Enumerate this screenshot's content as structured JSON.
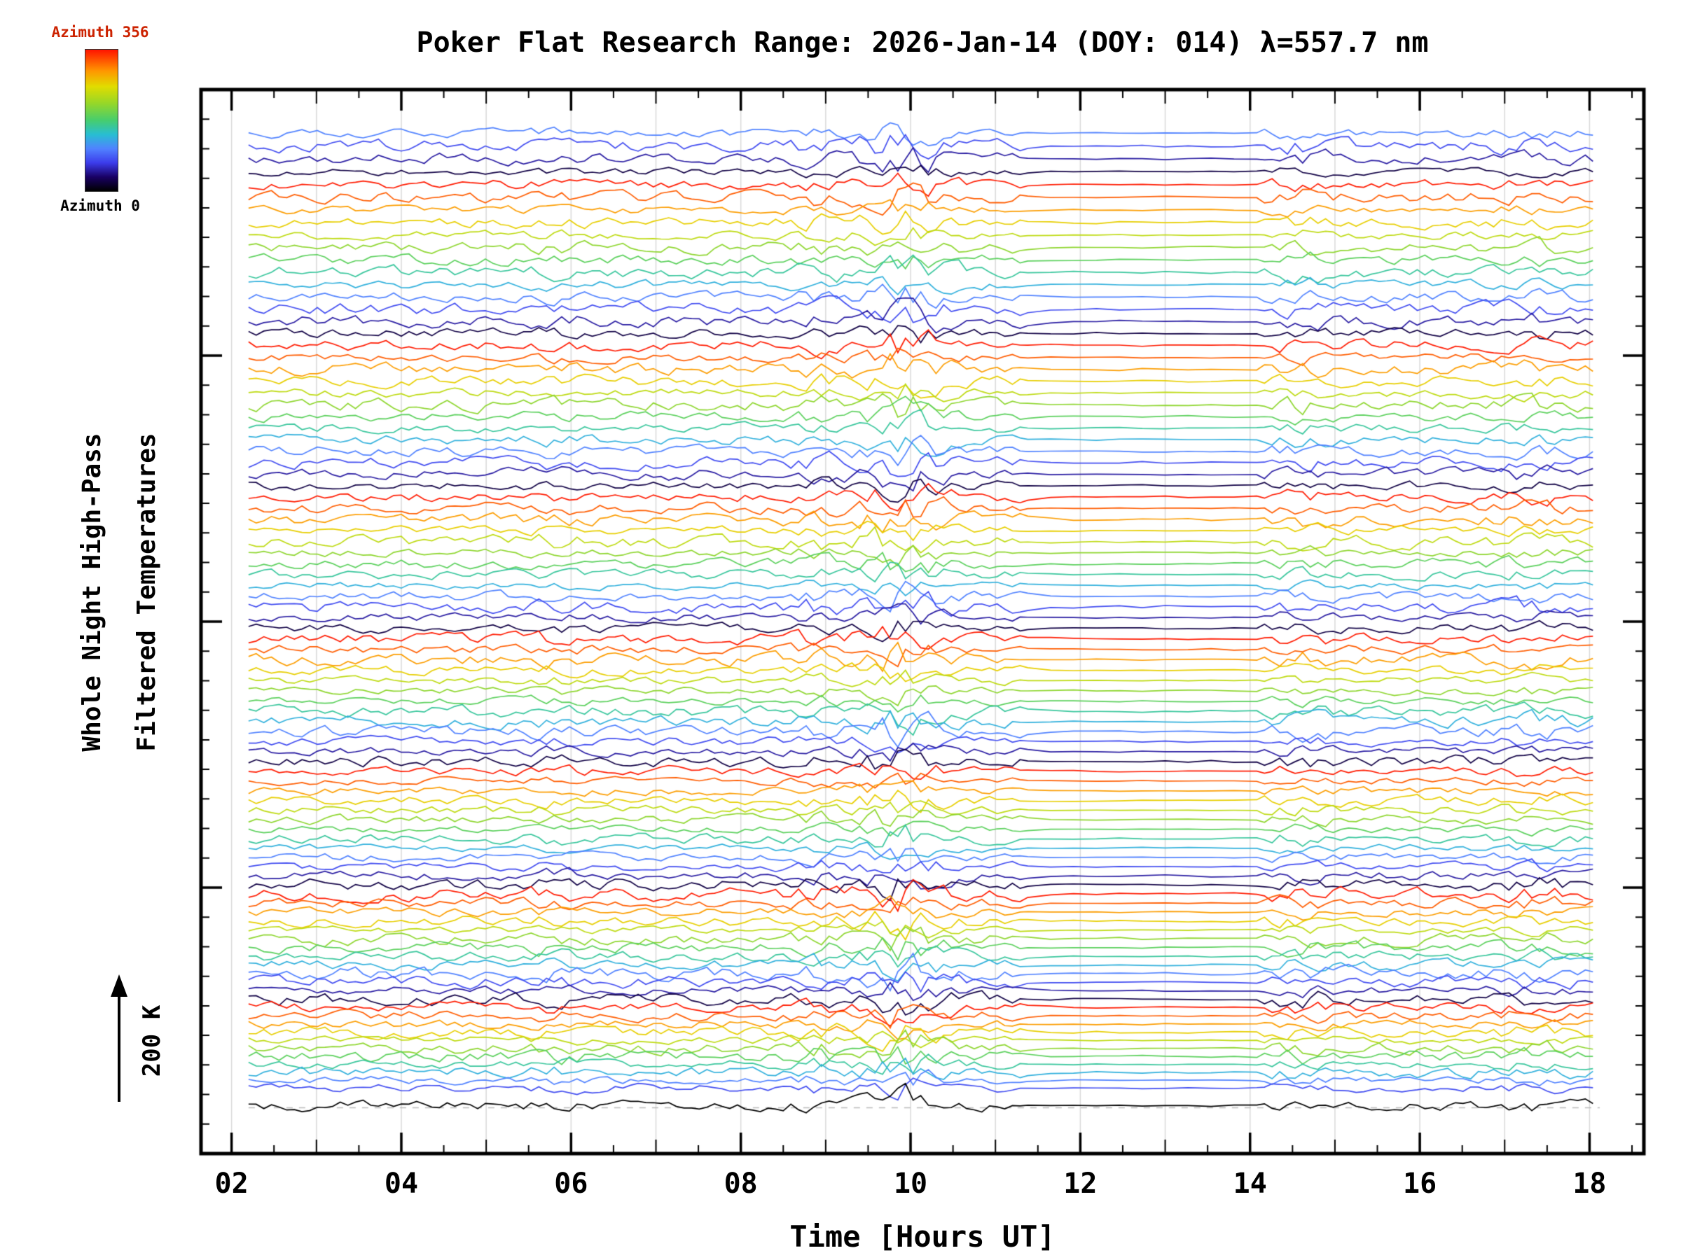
{
  "title": "Poker Flat Research Range: 2026-Jan-14 (DOY: 014) λ=557.7 nm",
  "colorbar": {
    "top_label": "Azimuth 356",
    "bottom_label": "Azimuth 0",
    "top_label_color": "#cc2200",
    "bottom_label_color": "#000000"
  },
  "y_axis_label": {
    "line1": "Whole Night High-Pass",
    "line2": "Filtered Temperatures"
  },
  "scale_arrow_label": "200 K",
  "x_axis_label": "Time [Hours UT]",
  "chart_data": {
    "type": "line",
    "title": "Poker Flat Research Range: 2026-Jan-14 (DOY: 014) λ=557.7 nm",
    "xlabel": "Time [Hours UT]",
    "ylabel": "Whole Night High-Pass Filtered Temperatures",
    "x_tick_hours": [
      2,
      4,
      6,
      8,
      10,
      12,
      14,
      16,
      18
    ],
    "x_tick_labels": [
      "02",
      "04",
      "06",
      "08",
      "10",
      "12",
      "14",
      "16",
      "18"
    ],
    "axis_range_hours": [
      1.64,
      18.64
    ],
    "data_range_hours": [
      2.2,
      18.12
    ],
    "grid": "light gray vertical gridline at every hour",
    "legend": "vertical colorbar maps trace color to azimuth: 0 = black/dark blue, 356 = red",
    "n_traces": 94,
    "traces_per_color_cycle": 13,
    "azimuth_min": 0,
    "azimuth_max": 356,
    "scale_bar_kelvin": 200,
    "y_axis_numeric_labels": "none (traces vertically offset, 200 K scale arrow given)",
    "features": {
      "disturbance_center_hour": 9.9,
      "secondary_disturbance_hours": [
        8.9,
        14.6,
        17.3,
        5.8
      ],
      "quiet_interval_hours": [
        11.35,
        14.15
      ],
      "bottom_reference_trace": "black trace with gray dashed baseline"
    },
    "palette_stops": [
      [
        0.0,
        0,
        0,
        0
      ],
      [
        0.1,
        25,
        0,
        100
      ],
      [
        0.2,
        60,
        60,
        235
      ],
      [
        0.3,
        80,
        130,
        255
      ],
      [
        0.4,
        40,
        190,
        210
      ],
      [
        0.5,
        70,
        205,
        110
      ],
      [
        0.62,
        150,
        215,
        40
      ],
      [
        0.74,
        225,
        220,
        0
      ],
      [
        0.85,
        255,
        150,
        0
      ],
      [
        0.93,
        255,
        80,
        0
      ],
      [
        1.0,
        255,
        20,
        0
      ]
    ],
    "color_phase_top": 0.3,
    "seed": 20260114,
    "noise": {
      "base_amp": 5.2,
      "persistence": 0.55,
      "quiet_amp_factor": 0.18,
      "disturbance_amp_factor": 2.3
    }
  }
}
